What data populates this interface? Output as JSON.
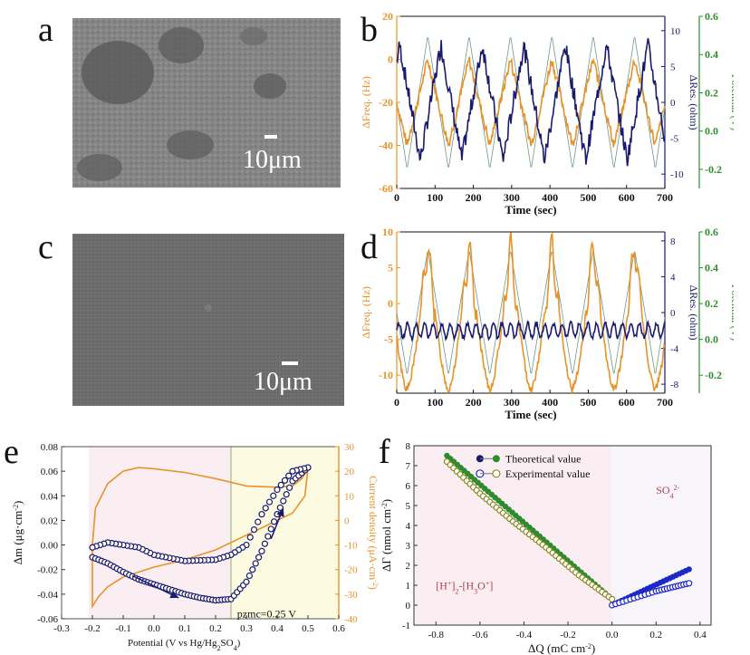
{
  "panels": {
    "a": {
      "label": "a",
      "scale": "10μm"
    },
    "b": {
      "label": "b"
    },
    "c": {
      "label": "c",
      "scale": "10μm"
    },
    "d": {
      "label": "d"
    },
    "e": {
      "label": "e"
    },
    "f": {
      "label": "f"
    }
  },
  "colors": {
    "orange": "#e8922a",
    "navy": "#1a1a6e",
    "green": "#2e8b2e",
    "thin_green": "#6f9a86",
    "olive": "#8a8a22",
    "blue": "#1c28c8",
    "pink_bg": "#fbeef2",
    "yellow_bg": "#fcfbe1",
    "pzmc_line": "#9aa87a",
    "label_red": "#b0404a"
  },
  "chart_data": [
    {
      "id": "b",
      "type": "line",
      "xlabel": "Time (sec)",
      "ylabel_left": "ΔFreq. (Hz)",
      "ylabel_right1": "ΔRes. (ohm)",
      "ylabel_right2": "Potential (V)",
      "xlim": [
        0,
        700
      ],
      "ylim_left": [
        -60,
        20
      ],
      "ylim_right1": [
        -12,
        12
      ],
      "ylim_right2": [
        -0.3,
        0.6
      ],
      "xticks": [
        "0",
        "100",
        "200",
        "300",
        "400",
        "500",
        "600",
        "700"
      ],
      "yticks_left": [
        "20",
        "0",
        "-20",
        "-40",
        "-60"
      ],
      "yticks_right1": [
        "10",
        "5",
        "0",
        "-5",
        "-10"
      ],
      "yticks_right2": [
        "0.6",
        "0.4",
        "0.2",
        "0.0",
        "-0.2"
      ],
      "period": 108,
      "series": [
        {
          "name": "ΔFreq.",
          "amplitude": 20,
          "center": -20
        },
        {
          "name": "ΔRes.",
          "amplitude": 8,
          "center": 0
        },
        {
          "name": "Potential",
          "min": -0.2,
          "max": 0.5
        }
      ]
    },
    {
      "id": "d",
      "type": "line",
      "xlabel": "Time (sec)",
      "ylabel_left": "ΔFreq. (Hz)",
      "ylabel_right1": "ΔRes. (ohm)",
      "ylabel_right2": "Potential (V)",
      "xlim": [
        0,
        700
      ],
      "ylim_left": [
        -12.5,
        10
      ],
      "ylim_right1": [
        -9,
        9
      ],
      "ylim_right2": [
        -0.3,
        0.6
      ],
      "xticks": [
        "0",
        "100",
        "200",
        "300",
        "400",
        "500",
        "600",
        "700"
      ],
      "yticks_left": [
        "10",
        "5",
        "0",
        "-5",
        "-10"
      ],
      "yticks_right1": [
        "8",
        "4",
        "0",
        "-4",
        "-8"
      ],
      "yticks_right2": [
        "0.6",
        "0.4",
        "0.2",
        "0.0",
        "-0.2"
      ],
      "period": 108,
      "series": [
        {
          "name": "ΔFreq.",
          "min": -12,
          "max": 8.5
        },
        {
          "name": "ΔRes.",
          "center": -2,
          "amplitude": 1
        },
        {
          "name": "Potential",
          "min": -0.2,
          "max": 0.5
        }
      ]
    },
    {
      "id": "e",
      "type": "line",
      "xlabel": "Potential (V vs Hg/Hg2SO4)",
      "ylabel_left": "Δm (μg·cm-2)",
      "ylabel_right": "Current density (μA·cm-2)",
      "xlim": [
        -0.3,
        0.6
      ],
      "ylim_left": [
        -0.06,
        0.08
      ],
      "ylim_right": [
        -40,
        30
      ],
      "xticks": [
        "-0.3",
        "-0.2",
        "-0.1",
        "0.0",
        "0.1",
        "0.2",
        "0.3",
        "0.4",
        "0.5",
        "0.6"
      ],
      "yticks_left": [
        "0.08",
        "0.06",
        "0.04",
        "0.02",
        "0.00",
        "-0.02",
        "-0.04",
        "-0.06"
      ],
      "yticks_right": [
        "30",
        "20",
        "10",
        "0",
        "-10",
        "-20",
        "-30",
        "-40"
      ],
      "annotation": "pzmc=0.25 V",
      "pzmc": 0.25,
      "mass_points_forward": [
        [
          -0.2,
          -0.01
        ],
        [
          -0.15,
          -0.015
        ],
        [
          -0.1,
          -0.022
        ],
        [
          -0.05,
          -0.028
        ],
        [
          0.0,
          -0.032
        ],
        [
          0.05,
          -0.036
        ],
        [
          0.1,
          -0.04
        ],
        [
          0.15,
          -0.043
        ],
        [
          0.2,
          -0.045
        ],
        [
          0.25,
          -0.044
        ],
        [
          0.3,
          -0.03
        ],
        [
          0.35,
          -0.005
        ],
        [
          0.4,
          0.025
        ],
        [
          0.45,
          0.052
        ],
        [
          0.5,
          0.063
        ]
      ],
      "mass_points_reverse": [
        [
          0.5,
          0.063
        ],
        [
          0.45,
          0.06
        ],
        [
          0.4,
          0.045
        ],
        [
          0.35,
          0.025
        ],
        [
          0.3,
          0.0
        ],
        [
          0.25,
          -0.008
        ],
        [
          0.2,
          -0.012
        ],
        [
          0.1,
          -0.013
        ],
        [
          0.0,
          -0.008
        ],
        [
          -0.05,
          -0.002
        ],
        [
          -0.1,
          0.0
        ],
        [
          -0.15,
          0.002
        ],
        [
          -0.2,
          -0.002
        ]
      ]
    },
    {
      "id": "f",
      "type": "scatter",
      "xlabel": "ΔQ (mC cm-2)",
      "ylabel": "ΔΓ (nmol cm-2)",
      "xlim": [
        -0.9,
        0.45
      ],
      "ylim": [
        -1,
        8
      ],
      "xticks": [
        "-0.8",
        "-0.6",
        "-0.4",
        "-0.2",
        "0.0",
        "0.2",
        "0.4"
      ],
      "yticks": [
        "8",
        "7",
        "6",
        "5",
        "4",
        "3",
        "2",
        "1",
        "0",
        "-1"
      ],
      "legend": [
        "Theoretical value",
        "Experimental value"
      ],
      "label_left": "[H+]2-[H3O+]",
      "label_right": "SO42-",
      "theoretical_left": [
        [
          -0.75,
          7.5
        ],
        [
          0.0,
          0.3
        ]
      ],
      "experimental_left": [
        [
          -0.75,
          7.2
        ],
        [
          -0.6,
          5.6
        ],
        [
          -0.45,
          4.2
        ],
        [
          -0.3,
          2.9
        ],
        [
          -0.15,
          1.5
        ],
        [
          0.0,
          0.3
        ]
      ],
      "theoretical_right": [
        [
          0.0,
          0.0
        ],
        [
          0.35,
          1.8
        ]
      ],
      "experimental_right": [
        [
          0.0,
          0.0
        ],
        [
          0.2,
          0.7
        ],
        [
          0.35,
          1.1
        ]
      ]
    }
  ]
}
